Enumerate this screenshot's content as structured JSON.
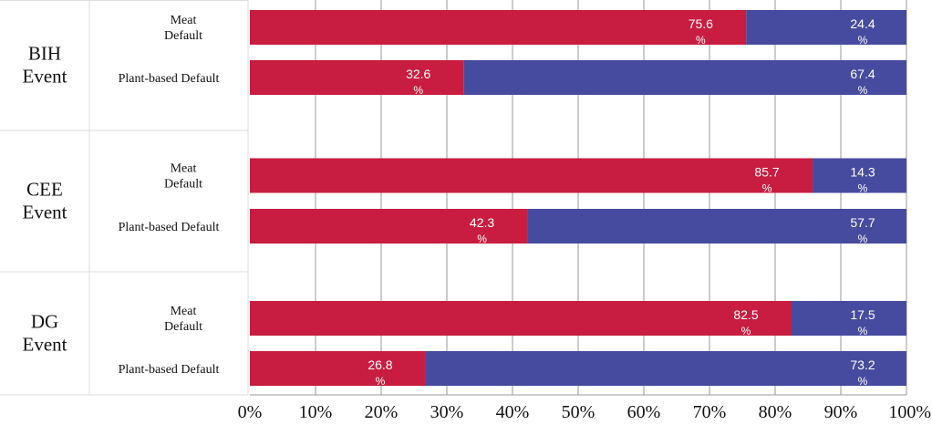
{
  "chart_data": {
    "type": "bar",
    "stacked": true,
    "orientation": "horizontal",
    "groups": [
      {
        "label_line1": "BIH",
        "label_line2": "Event"
      },
      {
        "label_line1": "CEE",
        "label_line2": "Event"
      },
      {
        "label_line1": "DG",
        "label_line2": "Event"
      }
    ],
    "rows": [
      {
        "group": 0,
        "label_line1": "Meat",
        "label_line2": "Default",
        "meat": 75.6,
        "plant": 24.4,
        "meat_label": "75.6",
        "plant_label": "24.4"
      },
      {
        "group": 0,
        "label_line1": "Plant-based Default",
        "label_line2": "",
        "meat": 32.6,
        "plant": 67.4,
        "meat_label": "32.6",
        "plant_label": "67.4"
      },
      {
        "group": 1,
        "label_line1": "Meat",
        "label_line2": "Default",
        "meat": 85.7,
        "plant": 14.3,
        "meat_label": "85.7",
        "plant_label": "14.3"
      },
      {
        "group": 1,
        "label_line1": "Plant-based Default",
        "label_line2": "",
        "meat": 42.3,
        "plant": 57.7,
        "meat_label": "42.3",
        "plant_label": "57.7"
      },
      {
        "group": 2,
        "label_line1": "Meat",
        "label_line2": "Default",
        "meat": 82.5,
        "plant": 17.5,
        "meat_label": "82.5",
        "plant_label": "17.5"
      },
      {
        "group": 2,
        "label_line1": "Plant-based Default",
        "label_line2": "",
        "meat": 26.8,
        "plant": 73.2,
        "meat_label": "26.8",
        "plant_label": "73.2"
      }
    ],
    "percent_sign": "%",
    "x_ticks": [
      "0%",
      "10%",
      "20%",
      "30%",
      "40%",
      "50%",
      "60%",
      "70%",
      "80%",
      "90%",
      "100%"
    ],
    "xlim": [
      0,
      100
    ],
    "grid": true,
    "colors": {
      "meat": "#c81d40",
      "plant": "#474b9f",
      "grid": "#9a9a9a",
      "table_border": "#dddddd"
    }
  }
}
